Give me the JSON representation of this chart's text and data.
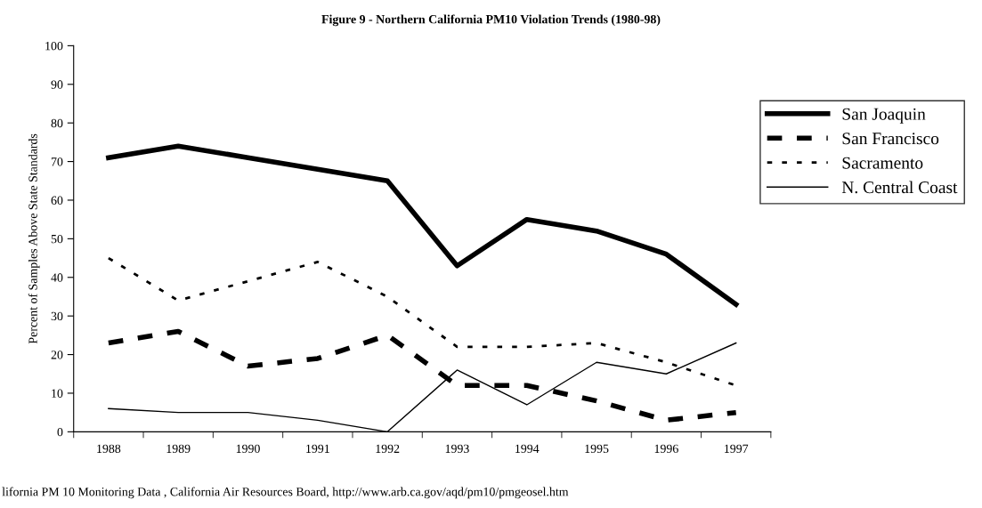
{
  "chart_data": {
    "type": "line",
    "title": "Figure 9 - Northern California PM10 Violation Trends (1980-98)",
    "ylabel": "Percent of Samples Above State Standards",
    "categories": [
      "1988",
      "1989",
      "1990",
      "1991",
      "1992",
      "1993",
      "1994",
      "1995",
      "1996",
      "1997"
    ],
    "series": [
      {
        "name": "San Joaquin",
        "color": "#000000",
        "line_style": "solid",
        "values": [
          71,
          74,
          71,
          68,
          65,
          43,
          55,
          52,
          46,
          33
        ]
      },
      {
        "name": "San Francisco",
        "color": "#000000",
        "line_style": "dashed",
        "values": [
          23,
          26,
          17,
          19,
          25,
          12,
          12,
          8,
          3,
          5
        ]
      },
      {
        "name": "Sacramento",
        "color": "#000000",
        "line_style": "dotted",
        "values": [
          45,
          34,
          39,
          44,
          35,
          22,
          22,
          23,
          18,
          12
        ]
      },
      {
        "name": "N. Central Coast",
        "color": "#000000",
        "line_style": "solid",
        "values": [
          6,
          5,
          5,
          3,
          0,
          16,
          7,
          18,
          15,
          23
        ]
      }
    ],
    "ylim": [
      0,
      100
    ],
    "yticks": [
      0,
      10,
      20,
      30,
      40,
      50,
      60,
      70,
      80,
      90,
      100
    ],
    "grid": false,
    "legend": "top right",
    "marker": "none",
    "annotations": [
      "lifornia PM 10 Monitoring Data , California Air Resources Board, http://www.arb.ca.gov/aqd/pm10/pmgeosel.htm"
    ]
  }
}
